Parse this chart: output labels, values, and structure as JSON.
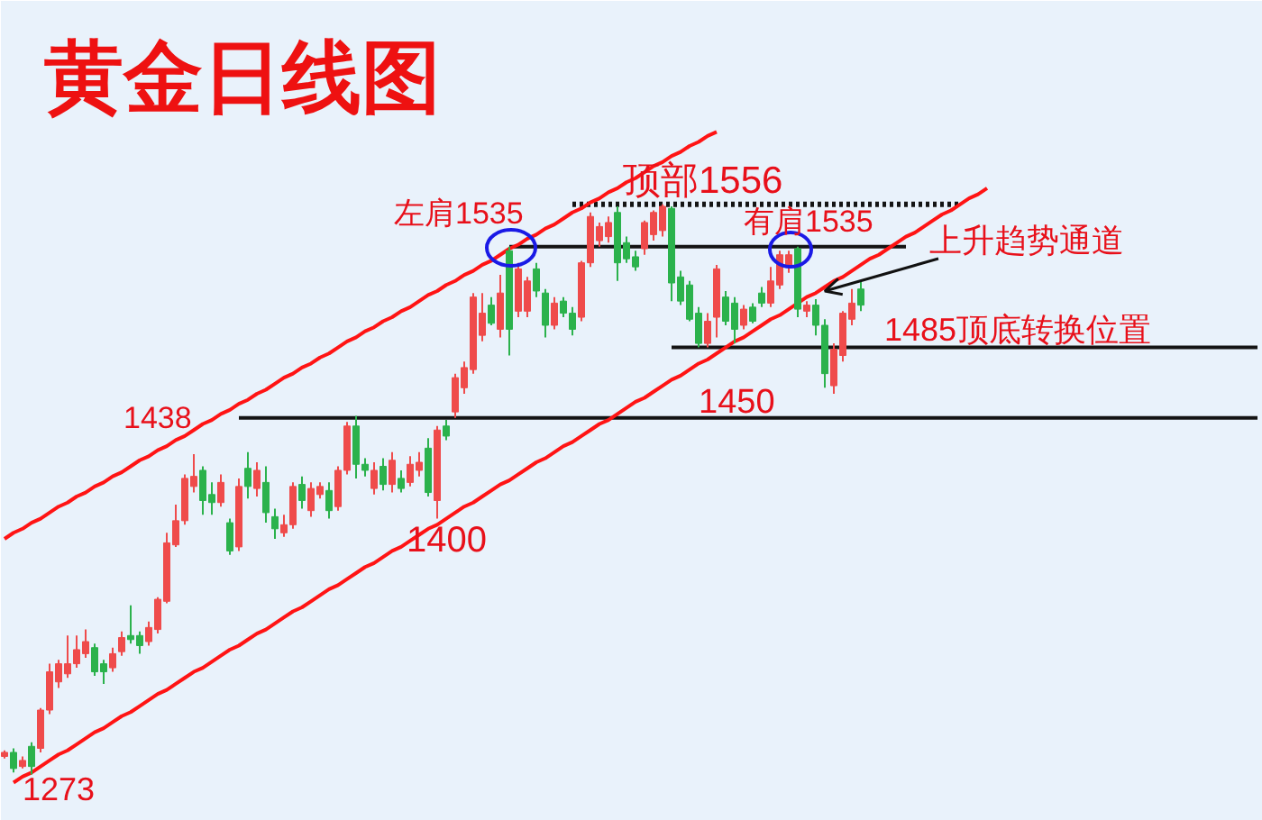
{
  "chart_data": {
    "type": "candlestick",
    "title": "黄金日线图",
    "categories": [
      null,
      null,
      null,
      null,
      null,
      null,
      null,
      null,
      null,
      null,
      null,
      null,
      null,
      null,
      null,
      null,
      null,
      null,
      null,
      null,
      null,
      null,
      null,
      null,
      null,
      null,
      null,
      null,
      null,
      null,
      null,
      null,
      null,
      null,
      null,
      null,
      null,
      null,
      null,
      null,
      null,
      null,
      null,
      null,
      null,
      null,
      null,
      null,
      null,
      null,
      null,
      null,
      null,
      null,
      null,
      null,
      null,
      null,
      null,
      null,
      null,
      null,
      null,
      null,
      null,
      null,
      null,
      null,
      null,
      null,
      null,
      null,
      null,
      null,
      null,
      null,
      null,
      null,
      null,
      null,
      null,
      null,
      null,
      null,
      null,
      null,
      null,
      null,
      null,
      null,
      null,
      null,
      null,
      null,
      null,
      null,
      null,
      null,
      null,
      null,
      null,
      null,
      null,
      null,
      null,
      null,
      null,
      null,
      null,
      null,
      null,
      null,
      null,
      null,
      null,
      null,
      null,
      null,
      null,
      null,
      null,
      null,
      null,
      null,
      null,
      null,
      null,
      null,
      null,
      null,
      null,
      null,
      null,
      null,
      null,
      null,
      null,
      null,
      null,
      null
    ],
    "ohlc": [
      [
        1282,
        1285,
        1281,
        1284
      ],
      [
        1284,
        1286,
        1274,
        1276
      ],
      [
        1277,
        1282,
        1276,
        1280
      ],
      [
        1287,
        1289,
        1273,
        1277
      ],
      [
        1286,
        1306,
        1284,
        1305
      ],
      [
        1305,
        1328,
        1303,
        1324
      ],
      [
        1319,
        1330,
        1316,
        1328
      ],
      [
        1323,
        1342,
        1321,
        1328
      ],
      [
        1328,
        1342,
        1326,
        1335
      ],
      [
        1333,
        1345,
        1331,
        1339
      ],
      [
        1336,
        1338,
        1322,
        1324
      ],
      [
        1328,
        1330,
        1318,
        1324
      ],
      [
        1326,
        1336,
        1324,
        1333
      ],
      [
        1334,
        1344,
        1332,
        1341
      ],
      [
        1342,
        1357,
        1338,
        1340
      ],
      [
        1342,
        1344,
        1333,
        1337
      ],
      [
        1339,
        1349,
        1337,
        1346
      ],
      [
        1345,
        1361,
        1343,
        1360
      ],
      [
        1359,
        1393,
        1358,
        1388
      ],
      [
        1387,
        1407,
        1386,
        1399
      ],
      [
        1399,
        1422,
        1397,
        1420
      ],
      [
        1416,
        1432,
        1413,
        1421
      ],
      [
        1424,
        1426,
        1402,
        1409
      ],
      [
        1412,
        1418,
        1402,
        1408
      ],
      [
        1408,
        1422,
        1406,
        1418
      ],
      [
        1398,
        1400,
        1382,
        1384
      ],
      [
        1386,
        1420,
        1384,
        1416
      ],
      [
        1425,
        1433,
        1410,
        1416
      ],
      [
        1415,
        1428,
        1411,
        1424
      ],
      [
        1418,
        1426,
        1398,
        1403
      ],
      [
        1401,
        1405,
        1390,
        1395
      ],
      [
        1393,
        1402,
        1391,
        1397
      ],
      [
        1397,
        1418,
        1395,
        1416
      ],
      [
        1417,
        1421,
        1405,
        1409
      ],
      [
        1404,
        1418,
        1401,
        1415
      ],
      [
        1412,
        1418,
        1410,
        1416
      ],
      [
        1414,
        1418,
        1400,
        1404
      ],
      [
        1406,
        1426,
        1404,
        1424
      ],
      [
        1424,
        1448,
        1422,
        1446
      ],
      [
        1446,
        1451,
        1420,
        1427
      ],
      [
        1427,
        1430,
        1421,
        1424
      ],
      [
        1415,
        1428,
        1412,
        1424
      ],
      [
        1426,
        1430,
        1414,
        1417
      ],
      [
        1417,
        1433,
        1413,
        1429
      ],
      [
        1420,
        1424,
        1413,
        1415
      ],
      [
        1418,
        1431,
        1416,
        1427
      ],
      [
        1424,
        1433,
        1421,
        1428
      ],
      [
        1435,
        1440,
        1411,
        1413
      ],
      [
        1409,
        1446,
        1400,
        1444
      ],
      [
        1446,
        1449,
        1439,
        1441
      ],
      [
        1453,
        1472,
        1450,
        1470
      ],
      [
        1465,
        1478,
        1462,
        1475
      ],
      [
        1474,
        1512,
        1472,
        1510
      ],
      [
        1491,
        1512,
        1488,
        1502
      ],
      [
        1506,
        1510,
        1496,
        1497
      ],
      [
        1494,
        1521,
        1490,
        1512
      ],
      [
        1533,
        1535,
        1481,
        1494
      ],
      [
        1503,
        1527,
        1500,
        1524
      ],
      [
        1503,
        1520,
        1500,
        1518
      ],
      [
        1524,
        1527,
        1510,
        1513
      ],
      [
        1512,
        1514,
        1490,
        1496
      ],
      [
        1496,
        1510,
        1494,
        1507
      ],
      [
        1508,
        1510,
        1500,
        1502
      ],
      [
        1502,
        1505,
        1491,
        1494
      ],
      [
        1500,
        1528,
        1498,
        1527
      ],
      [
        1527,
        1552,
        1525,
        1550
      ],
      [
        1538,
        1547,
        1535,
        1545
      ],
      [
        1540,
        1550,
        1537,
        1547
      ],
      [
        1552,
        1555,
        1518,
        1527
      ],
      [
        1537,
        1540,
        1527,
        1529
      ],
      [
        1530,
        1533,
        1523,
        1525
      ],
      [
        1534,
        1548,
        1531,
        1547
      ],
      [
        1541,
        1553,
        1538,
        1552
      ],
      [
        1543,
        1556,
        1540,
        1555
      ],
      [
        1554,
        1555,
        1508,
        1517
      ],
      [
        1520,
        1523,
        1506,
        1508
      ],
      [
        1516,
        1518,
        1498,
        1499
      ],
      [
        1502,
        1505,
        1485,
        1487
      ],
      [
        1487,
        1502,
        1485,
        1498
      ],
      [
        1500,
        1526,
        1490,
        1524
      ],
      [
        1510,
        1513,
        1496,
        1498
      ],
      [
        1507,
        1510,
        1487,
        1494
      ],
      [
        1496,
        1506,
        1494,
        1504
      ],
      [
        1505,
        1507,
        1497,
        1498
      ],
      [
        1512,
        1515,
        1505,
        1507
      ],
      [
        1507,
        1525,
        1505,
        1518
      ],
      [
        1516,
        1533,
        1514,
        1531
      ],
      [
        1525,
        1533,
        1522,
        1531
      ],
      [
        1534,
        1535,
        1500,
        1504
      ],
      [
        1503,
        1508,
        1500,
        1506
      ],
      [
        1506,
        1509,
        1491,
        1496
      ],
      [
        1496,
        1499,
        1465,
        1472
      ],
      [
        1466,
        1487,
        1462,
        1484
      ],
      [
        1481,
        1503,
        1478,
        1502
      ],
      [
        1499,
        1514,
        1496,
        1507
      ],
      [
        1514,
        1518,
        1503,
        1506
      ],
      null,
      null,
      null,
      null,
      null,
      null,
      null,
      null,
      null,
      null,
      null,
      null,
      null,
      null,
      null,
      null,
      null,
      null,
      null,
      null,
      null,
      null,
      null,
      null,
      null,
      null,
      null,
      null,
      null,
      null,
      null,
      null,
      null,
      null,
      null,
      null,
      null,
      null,
      null,
      null,
      null,
      null,
      null,
      null
    ],
    "colors": [
      "#ef4b4b",
      "#2bb24c",
      "#ef4b4b",
      "#2bb24c",
      "#ef4b4b",
      "#ef4b4b",
      "#ef4b4b",
      "#ef4b4b",
      "#ef4b4b",
      "#ef4b4b",
      "#2bb24c",
      "#2bb24c",
      "#ef4b4b",
      "#ef4b4b",
      "#2bb24c",
      "#2bb24c",
      "#ef4b4b",
      "#ef4b4b",
      "#ef4b4b",
      "#ef4b4b",
      "#ef4b4b",
      "#ef4b4b",
      "#2bb24c",
      "#2bb24c",
      "#ef4b4b",
      "#2bb24c",
      "#ef4b4b",
      "#2bb24c",
      "#ef4b4b",
      "#2bb24c",
      "#2bb24c",
      "#ef4b4b",
      "#ef4b4b",
      "#2bb24c",
      "#ef4b4b",
      "#ef4b4b",
      "#2bb24c",
      "#ef4b4b",
      "#ef4b4b",
      "#2bb24c",
      "#2bb24c",
      "#ef4b4b",
      "#2bb24c",
      "#ef4b4b",
      "#2bb24c",
      "#ef4b4b",
      "#ef4b4b",
      "#2bb24c",
      "#ef4b4b",
      "#2bb24c",
      "#ef4b4b",
      "#ef4b4b",
      "#ef4b4b",
      "#ef4b4b",
      "#2bb24c",
      "#ef4b4b",
      "#2bb24c",
      "#ef4b4b",
      "#ef4b4b",
      "#2bb24c",
      "#2bb24c",
      "#ef4b4b",
      "#2bb24c",
      "#2bb24c",
      "#ef4b4b",
      "#ef4b4b",
      "#ef4b4b",
      "#ef4b4b",
      "#2bb24c",
      "#2bb24c",
      "#2bb24c",
      "#ef4b4b",
      "#ef4b4b",
      "#ef4b4b",
      "#2bb24c",
      "#2bb24c",
      "#2bb24c",
      "#2bb24c",
      "#ef4b4b",
      "#ef4b4b",
      "#2bb24c",
      "#2bb24c",
      "#ef4b4b",
      "#2bb24c",
      "#2bb24c",
      "#ef4b4b",
      "#ef4b4b",
      "#ef4b4b",
      "#2bb24c",
      "#ef4b4b",
      "#2bb24c",
      "#2bb24c",
      "#ef4b4b",
      "#ef4b4b",
      "#ef4b4b",
      "#2bb24c",
      null,
      null,
      null,
      null,
      null,
      null,
      null,
      null,
      null,
      null,
      null,
      null,
      null,
      null,
      null,
      null,
      null,
      null,
      null,
      null,
      null,
      null,
      null,
      null,
      null,
      null,
      null,
      null,
      null,
      null,
      null,
      null,
      null,
      null,
      null,
      null,
      null,
      null,
      null,
      null,
      null,
      null,
      null,
      null
    ],
    "series": [
      {
        "type": "line",
        "color": "#141414",
        "line_style": "solid",
        "values": [
          null,
          null,
          null,
          null,
          null,
          null,
          null,
          null,
          null,
          null,
          null,
          null,
          null,
          null,
          null,
          null,
          null,
          null,
          null,
          null,
          null,
          null,
          null,
          null,
          null,
          null,
          1450,
          1450,
          1450,
          1450,
          1450,
          1450,
          1450,
          1450,
          1450,
          1450,
          1450,
          1450,
          1450,
          1450,
          1450,
          1450,
          1450,
          1450,
          1450,
          1450,
          1450,
          1450,
          1450,
          1450,
          1450,
          1450,
          1450,
          1450,
          1450,
          1450,
          1450,
          1450,
          1450,
          1450,
          1450,
          1450,
          1450,
          1450,
          1450,
          1450,
          1450,
          1450,
          1450,
          1450,
          1450,
          1450,
          1450,
          1450,
          1450,
          1450,
          1450,
          1450,
          1450,
          1450,
          1450,
          1450,
          1450,
          1450,
          1450,
          1450,
          1450,
          1450,
          1450,
          1450,
          1450,
          1450,
          1450,
          1450,
          1450,
          1450,
          1450,
          1450,
          1450,
          1450,
          1450,
          1450,
          1450,
          1450,
          1450,
          1450,
          1450,
          1450,
          1450,
          1450,
          1450,
          1450,
          1450,
          1450,
          1450,
          1450,
          1450,
          1450,
          1450,
          1450,
          1450,
          1450,
          1450,
          1450,
          1450,
          1450,
          1450,
          1450,
          1450,
          1450,
          1450,
          1450,
          1450,
          1450,
          1450,
          1450,
          1450,
          1450,
          1450,
          1450
        ]
      },
      {
        "type": "line",
        "color": "#141414",
        "line_style": "solid",
        "values": [
          null,
          null,
          null,
          null,
          null,
          null,
          null,
          null,
          null,
          null,
          null,
          null,
          null,
          null,
          null,
          null,
          null,
          null,
          null,
          null,
          null,
          null,
          null,
          null,
          null,
          null,
          null,
          null,
          null,
          null,
          null,
          null,
          null,
          null,
          null,
          null,
          null,
          null,
          null,
          null,
          null,
          null,
          null,
          null,
          null,
          null,
          null,
          null,
          null,
          null,
          null,
          null,
          null,
          null,
          null,
          null,
          null,
          null,
          null,
          null,
          null,
          null,
          null,
          null,
          null,
          null,
          null,
          null,
          null,
          null,
          null,
          null,
          null,
          null,
          1485,
          1485,
          1485,
          1485,
          1485,
          1485,
          1485,
          1485,
          1485,
          1485,
          1485,
          1485,
          1485,
          1485,
          1485,
          1485,
          1485,
          1485,
          1485,
          1485,
          1485,
          1485,
          1485,
          1485,
          1485,
          1485,
          1485,
          1485,
          1485,
          1485,
          1485,
          1485,
          1485,
          1485,
          1485,
          1485,
          1485,
          1485,
          1485,
          1485,
          1485,
          1485,
          1485,
          1485,
          1485,
          1485,
          1485,
          1485,
          1485,
          1485,
          1485,
          1485,
          1485,
          1485,
          1485,
          1485,
          1485,
          1485,
          1485,
          1485,
          1485,
          1485,
          1485,
          1485,
          1485,
          1485
        ]
      },
      {
        "type": "line",
        "color": "#141414",
        "line_style": "solid",
        "values": [
          null,
          null,
          null,
          null,
          null,
          null,
          null,
          null,
          null,
          null,
          null,
          null,
          null,
          null,
          null,
          null,
          null,
          null,
          null,
          null,
          null,
          null,
          null,
          null,
          null,
          null,
          null,
          null,
          null,
          null,
          null,
          null,
          null,
          null,
          null,
          null,
          null,
          null,
          null,
          null,
          null,
          null,
          null,
          null,
          null,
          null,
          null,
          null,
          null,
          null,
          null,
          null,
          null,
          null,
          null,
          null,
          1535,
          1535,
          1535,
          1535,
          1535,
          1535,
          1535,
          1535,
          1535,
          1535,
          1535,
          1535,
          1535,
          1535,
          1535,
          1535,
          1535,
          1535,
          1535,
          1535,
          1535,
          1535,
          1535,
          1535,
          1535,
          1535,
          1535,
          1535,
          1535,
          1535,
          1535,
          1535,
          1535,
          1535,
          1535,
          1535,
          1535,
          1535,
          1535,
          1535,
          1535,
          1535,
          1535,
          1535,
          1535,
          null,
          null,
          null,
          null,
          null,
          null,
          null,
          null,
          null,
          null,
          null,
          null,
          null,
          null,
          null,
          null,
          null,
          null,
          null,
          null,
          null,
          null,
          null,
          null,
          null,
          null,
          null,
          null,
          null,
          null,
          null,
          null,
          null,
          null,
          null,
          null,
          null,
          null,
          null
        ]
      },
      {
        "type": "line",
        "color": "#141414",
        "line_style": "dotted",
        "values": [
          null,
          null,
          null,
          null,
          null,
          null,
          null,
          null,
          null,
          null,
          null,
          null,
          null,
          null,
          null,
          null,
          null,
          null,
          null,
          null,
          null,
          null,
          null,
          null,
          null,
          null,
          null,
          null,
          null,
          null,
          null,
          null,
          null,
          null,
          null,
          null,
          null,
          null,
          null,
          null,
          null,
          null,
          null,
          null,
          null,
          null,
          null,
          null,
          null,
          null,
          null,
          null,
          null,
          null,
          null,
          null,
          null,
          null,
          null,
          null,
          null,
          null,
          null,
          1556,
          1556,
          1556,
          1556,
          1556,
          1556,
          1556,
          1556,
          1556,
          1556,
          1556,
          1556,
          1556,
          1556,
          1556,
          1556,
          1556,
          1556,
          1556,
          1556,
          1556,
          1556,
          1556,
          1556,
          1556,
          1556,
          1556,
          1556,
          1556,
          1556,
          1556,
          1556,
          1556,
          1556,
          1556,
          1556,
          1556,
          1556,
          1556,
          1556,
          1556,
          1556,
          1556,
          1556,
          null,
          null,
          null,
          null,
          null,
          null,
          null,
          null,
          null,
          null,
          null,
          null,
          null,
          null,
          null,
          null,
          null,
          null,
          null,
          null,
          null,
          null,
          null,
          null,
          null,
          null,
          null,
          null,
          null,
          null,
          null,
          null,
          null
        ]
      },
      {
        "type": "line",
        "color": "#ff1414",
        "line_style": "solid",
        "values": [
          1390,
          1393,
          1395,
          1398,
          1400,
          1403,
          1406,
          1408,
          1411,
          1413,
          1416,
          1418,
          1421,
          1423,
          1426,
          1429,
          1431,
          1434,
          1436,
          1439,
          1441,
          1444,
          1447,
          1449,
          1452,
          1454,
          1457,
          1459,
          1462,
          1464,
          1467,
          1470,
          1472,
          1475,
          1477,
          1480,
          1482,
          1485,
          1488,
          1490,
          1493,
          1495,
          1498,
          1500,
          1503,
          1505,
          1508,
          1511,
          1513,
          1516,
          1518,
          1521,
          1523,
          1526,
          1528,
          1531,
          1534,
          1536,
          1539,
          1541,
          1544,
          1546,
          1549,
          1552,
          1554,
          1557,
          1559,
          1562,
          1564,
          1567,
          1569,
          1572,
          1575,
          1577,
          1580,
          1582,
          1585,
          1587,
          1590,
          1592,
          null,
          null,
          null,
          null,
          null,
          null,
          null,
          null,
          null,
          null,
          null,
          null,
          null,
          null,
          null,
          null,
          null,
          null,
          null,
          null,
          null,
          null,
          null,
          null,
          null,
          null,
          null,
          null,
          null,
          null,
          null,
          null,
          null,
          null,
          null,
          null,
          null,
          null,
          null,
          null,
          null,
          null,
          null,
          null,
          null,
          null,
          null,
          null,
          null,
          null,
          null,
          null,
          null,
          null,
          null,
          null,
          null,
          null,
          null,
          null
        ]
      },
      {
        "type": "line",
        "color": "#ff1414",
        "line_style": "solid",
        "values": [
          null,
          1269,
          1272,
          1274,
          1277,
          1280,
          1283,
          1285,
          1288,
          1291,
          1294,
          1296,
          1299,
          1302,
          1304,
          1307,
          1310,
          1313,
          1315,
          1318,
          1321,
          1324,
          1326,
          1329,
          1332,
          1335,
          1337,
          1340,
          1343,
          1345,
          1348,
          1351,
          1354,
          1356,
          1359,
          1362,
          1365,
          1367,
          1370,
          1373,
          1376,
          1378,
          1381,
          1384,
          1386,
          1389,
          1392,
          1395,
          1397,
          1400,
          1403,
          1406,
          1408,
          1411,
          1414,
          1417,
          1419,
          1422,
          1425,
          1428,
          1430,
          1433,
          1436,
          1438,
          1441,
          1444,
          1447,
          1449,
          1452,
          1455,
          1458,
          1460,
          1463,
          1466,
          1469,
          1471,
          1474,
          1477,
          1479,
          1482,
          1485,
          1488,
          1490,
          1493,
          1496,
          1499,
          1501,
          1504,
          1507,
          1510,
          1512,
          1515,
          1518,
          1520,
          1523,
          1526,
          1529,
          1531,
          1534,
          1537,
          1540,
          1542,
          1545,
          1548,
          1551,
          1553,
          1556,
          1559,
          1561,
          1564,
          null,
          null,
          null,
          null,
          null,
          null,
          null,
          null,
          null,
          null,
          null,
          null,
          null,
          null,
          null,
          null,
          null,
          null,
          null,
          null,
          null,
          null,
          null,
          null,
          null,
          null,
          null,
          null,
          null,
          null
        ]
      }
    ],
    "annotations": [
      "左肩1535",
      {
        "text": "顶部1556",
        "y": 1556
      },
      {
        "text": "有肩1535",
        "y": 1535
      },
      "上升趋势通道",
      {
        "text": "1485顶底转换位置",
        "y": 1485
      },
      {
        "text": "1450",
        "y": 1450
      },
      {
        "text": "1438",
        "y": 1438
      },
      {
        "text": "1400",
        "y": 1400
      },
      "1273"
    ],
    "ylim": [
      1250,
      1657
    ],
    "tick_labels": false
  }
}
